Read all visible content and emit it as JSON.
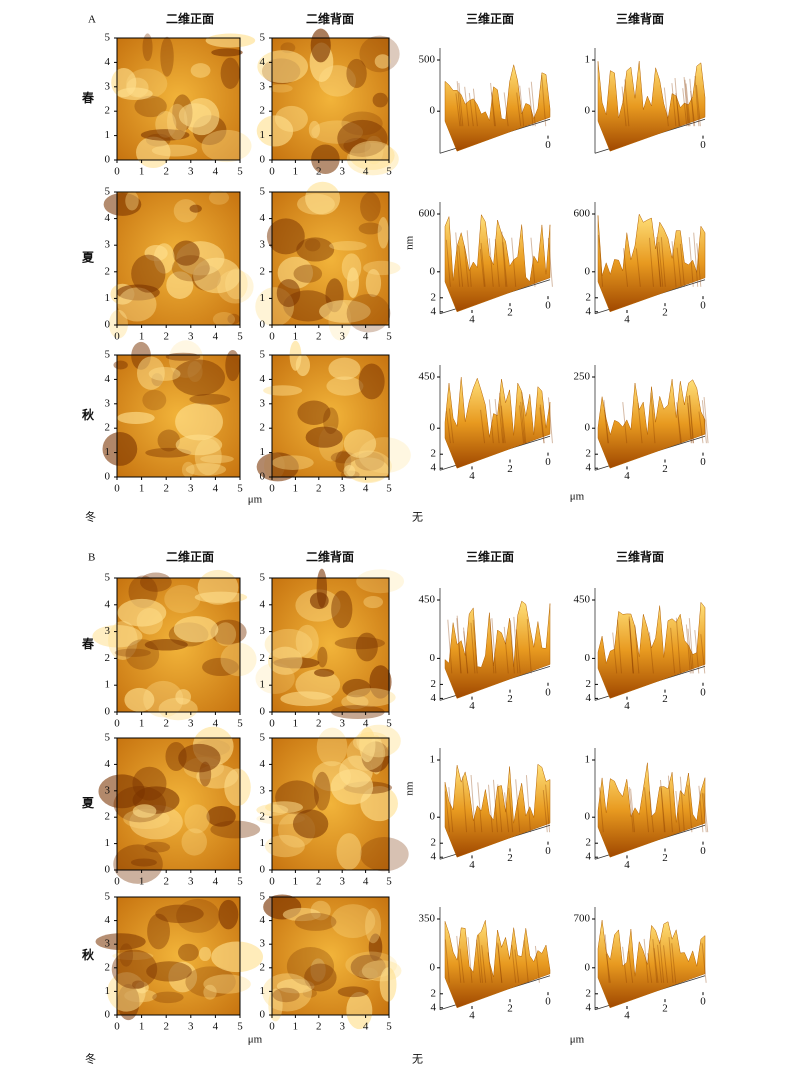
{
  "image_ticks": [
    0,
    1,
    2,
    3,
    4,
    5
  ],
  "panels": [
    {
      "label": "A",
      "headers": [
        "二维正面",
        "二维背面",
        "三维正面",
        "三维背面"
      ],
      "units": [
        "μm",
        "μm"
      ],
      "footer": [
        "冬",
        "无"
      ],
      "rows": [
        {
          "label": "春",
          "front": {
            "zticks": [
              500,
              0
            ],
            "depth_ticks": [],
            "x_ticks": [
              0
            ]
          },
          "back": {
            "zticks": [
              1,
              0
            ],
            "depth_ticks": [],
            "x_ticks": [
              0
            ]
          }
        },
        {
          "label": "夏",
          "z_label": "nm",
          "front": {
            "zticks": [
              600,
              0
            ],
            "depth_ticks": [
              2,
              4
            ],
            "x_ticks": [
              4,
              2,
              0
            ]
          },
          "back": {
            "zticks": [
              600,
              0
            ],
            "depth_ticks": [
              2,
              4
            ],
            "x_ticks": [
              4,
              2,
              0
            ]
          }
        },
        {
          "label": "秋",
          "front": {
            "zticks": [
              450,
              0
            ],
            "depth_ticks": [
              2,
              4
            ],
            "x_ticks": [
              4,
              2,
              0
            ]
          },
          "back": {
            "zticks": [
              250,
              0
            ],
            "depth_ticks": [
              2,
              4
            ],
            "x_ticks": [
              4,
              2,
              0
            ]
          }
        }
      ]
    },
    {
      "label": "B",
      "headers": [
        "二维正面",
        "二维背面",
        "三维正面",
        "三维背面"
      ],
      "units": [
        "μm",
        "μm"
      ],
      "footer": [
        "冬",
        "无"
      ],
      "rows": [
        {
          "label": "春",
          "front": {
            "zticks": [
              450,
              0
            ],
            "depth_ticks": [
              2,
              4
            ],
            "x_ticks": [
              4,
              2,
              0
            ]
          },
          "back": {
            "zticks": [
              450,
              0
            ],
            "depth_ticks": [
              2,
              4
            ],
            "x_ticks": [
              4,
              2,
              0
            ]
          }
        },
        {
          "label": "夏",
          "z_label": "nm",
          "front": {
            "zticks": [
              1,
              0
            ],
            "depth_ticks": [
              2,
              4
            ],
            "x_ticks": [
              4,
              2,
              0
            ]
          },
          "back": {
            "zticks": [
              1,
              0
            ],
            "depth_ticks": [
              2,
              4
            ],
            "x_ticks": [
              4,
              2,
              0
            ]
          }
        },
        {
          "label": "秋",
          "front": {
            "zticks": [
              350,
              0
            ],
            "depth_ticks": [
              2,
              4
            ],
            "x_ticks": [
              4,
              2,
              0
            ]
          },
          "back": {
            "zticks": [
              700,
              0
            ],
            "depth_ticks": [
              2,
              4
            ],
            "x_ticks": [
              4,
              2,
              0
            ]
          }
        }
      ]
    }
  ]
}
